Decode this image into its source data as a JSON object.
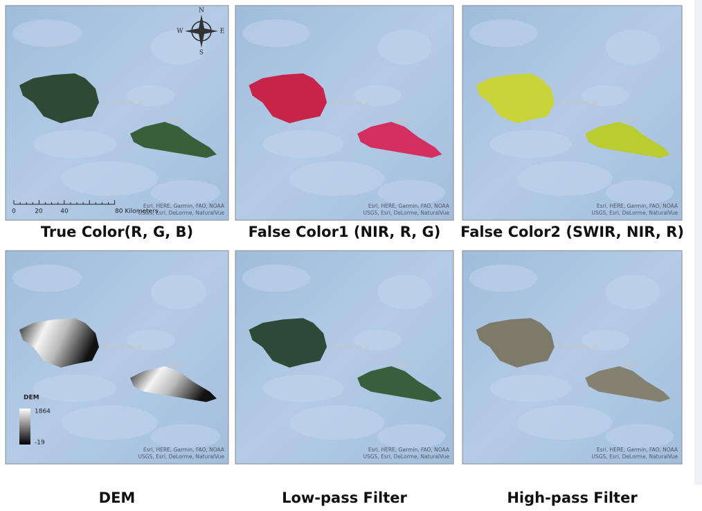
{
  "panels": [
    {
      "caption": "True Color(R, G, B)"
    },
    {
      "caption": "False Color1 (NIR, R, G)"
    },
    {
      "caption": "False Color2 (SWIR, NIR, R)"
    },
    {
      "caption": "DEM"
    },
    {
      "caption": "Low-pass Filter"
    },
    {
      "caption": "High-pass Filter"
    }
  ],
  "map_labels": {
    "place": "Samoa",
    "city": "Apia",
    "attribution": [
      "Esri, HERE, Garmin, FAO, NOAA",
      "USGS, Esri, DeLorme, NaturalVue"
    ]
  },
  "compass": {
    "n": "N",
    "e": "E",
    "s": "S",
    "w": "W"
  },
  "scale_bar": {
    "labels": [
      "0",
      "20",
      "40",
      "80 Kilometers"
    ]
  },
  "dem_legend": {
    "title": "DEM",
    "max": "1864",
    "min": "-19"
  }
}
